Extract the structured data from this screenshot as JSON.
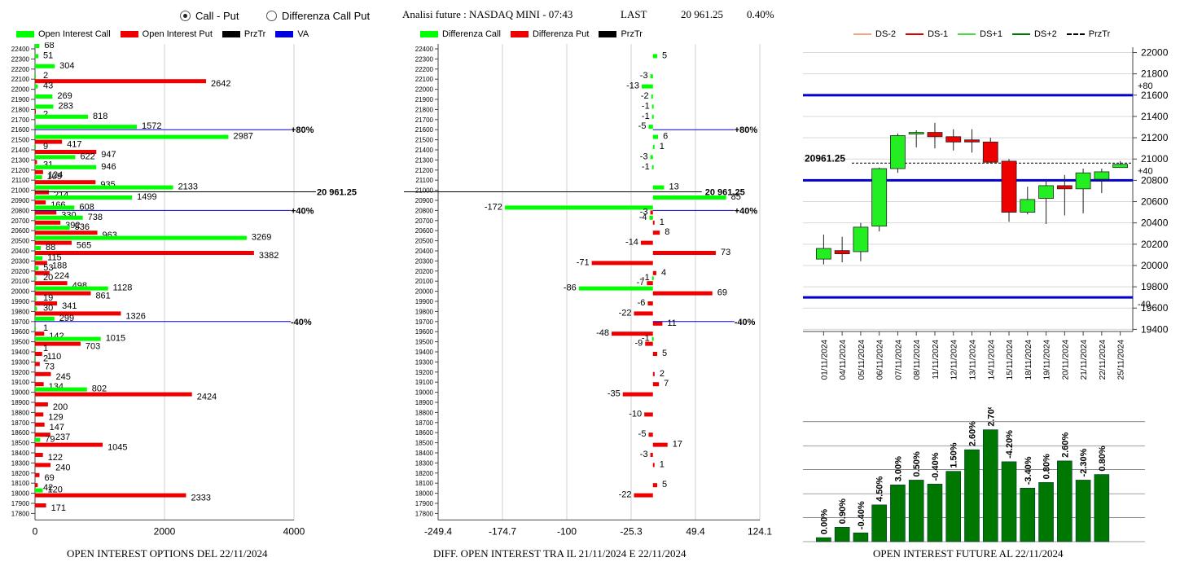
{
  "header": {
    "radio_options": [
      "Call - Put",
      "Differenza Call Put"
    ],
    "selected": "Call - Put",
    "title": "Analisi future : NASDAQ MINI - 07:43",
    "last_label": "LAST",
    "last_value": "20 961.25",
    "last_change": "0.40%"
  },
  "legends": {
    "oi": [
      {
        "label": "Open Interest Call",
        "color": "#00ff00",
        "kind": "bar"
      },
      {
        "label": "Open Interest Put",
        "color": "#ee0000",
        "kind": "bar"
      },
      {
        "label": "PrzTr",
        "color": "#000000",
        "kind": "bar"
      },
      {
        "label": "VA",
        "color": "#0000dd",
        "kind": "bar"
      }
    ],
    "diff": [
      {
        "label": "Differenza Call",
        "color": "#00ff00",
        "kind": "bar"
      },
      {
        "label": "Differenza Put",
        "color": "#ee0000",
        "kind": "bar"
      },
      {
        "label": "PrzTr",
        "color": "#000000",
        "kind": "bar"
      }
    ],
    "candle": [
      {
        "label": "DS-2",
        "color": "#f4a582",
        "kind": "line"
      },
      {
        "label": "DS-1",
        "color": "#dd0000",
        "kind": "line"
      },
      {
        "label": "DS+1",
        "color": "#44dd44",
        "kind": "line"
      },
      {
        "label": "DS+2",
        "color": "#007700",
        "kind": "line"
      },
      {
        "label": "PrzTr",
        "color": "#000000",
        "kind": "dash"
      }
    ]
  },
  "footers": {
    "oi": "OPEN INTEREST OPTIONS DEL 22/11/2024",
    "diff": "DIFF. OPEN INTEREST TRA IL 21/11/2024 E 22/11/2024",
    "future": "OPEN INTEREST FUTURE AL 22/11/2024"
  },
  "chart_data": [
    {
      "type": "bar",
      "orientation": "horizontal",
      "strikes": [
        22400,
        22300,
        22200,
        22100,
        22000,
        21900,
        21800,
        21700,
        21600,
        21500,
        21400,
        21300,
        21200,
        21100,
        21000,
        20900,
        20800,
        20700,
        20600,
        20500,
        20400,
        20300,
        20200,
        20100,
        20000,
        19900,
        19800,
        19700,
        19600,
        19500,
        19400,
        19300,
        19200,
        19100,
        19000,
        18900,
        18800,
        18700,
        18600,
        18500,
        18400,
        18300,
        18200,
        18100,
        18000,
        17900,
        17800
      ],
      "series": [
        {
          "name": "Open Interest Call",
          "color": "#00ff00",
          "values": [
            68,
            51,
            304,
            2,
            43,
            269,
            283,
            818,
            1572,
            2987,
            9,
            622,
            946,
            109,
            2133,
            1499,
            608,
            738,
            536,
            3269,
            88,
            115,
            53,
            20,
            1128,
            19,
            30,
            299,
            1,
            1015,
            1,
            2,
            null,
            null,
            802,
            null,
            null,
            null,
            null,
            79,
            null,
            null,
            null,
            null,
            120,
            null,
            null
          ]
        },
        {
          "name": "Open Interest Put",
          "color": "#ee0000",
          "values": [
            null,
            null,
            null,
            2642,
            null,
            null,
            2,
            null,
            null,
            417,
            947,
            31,
            124,
            935,
            214,
            166,
            330,
            392,
            963,
            565,
            3382,
            188,
            224,
            498,
            861,
            341,
            1326,
            null,
            142,
            703,
            110,
            73,
            245,
            134,
            2424,
            200,
            129,
            147,
            237,
            1045,
            122,
            240,
            69,
            42,
            2333,
            171,
            null
          ]
        }
      ],
      "xticks": [
        0,
        2000,
        4000
      ],
      "xlim": [
        0,
        4000
      ],
      "hlines": [
        {
          "strike": 21600,
          "label": "+80%",
          "color": "#0000cc",
          "type": "VA"
        },
        {
          "strike": 20985,
          "label": "20 961.25",
          "color": "#000000",
          "type": "PrzTr"
        },
        {
          "strike": 20800,
          "label": "+40%",
          "color": "#0000cc",
          "type": "VA"
        },
        {
          "strike": 19700,
          "label": "-40%",
          "color": "#0000cc",
          "type": "VA"
        }
      ]
    },
    {
      "type": "bar",
      "orientation": "horizontal",
      "strikes": [
        22400,
        22300,
        22200,
        22100,
        22000,
        21900,
        21800,
        21700,
        21600,
        21500,
        21400,
        21300,
        21200,
        21100,
        21000,
        20900,
        20800,
        20700,
        20600,
        20500,
        20400,
        20300,
        20200,
        20100,
        20000,
        19900,
        19800,
        19700,
        19600,
        19500,
        19400,
        19300,
        19200,
        19100,
        19000,
        18900,
        18800,
        18700,
        18600,
        18500,
        18400,
        18300,
        18200,
        18100,
        18000,
        17900,
        17800
      ],
      "series": [
        {
          "name": "Differenza Call",
          "color": "#00ff00",
          "values": [
            null,
            5,
            null,
            -3,
            -13,
            -2,
            -1,
            -1,
            -5,
            6,
            1,
            -3,
            -1,
            null,
            13,
            85,
            -172,
            -4,
            null,
            null,
            null,
            null,
            null,
            -1,
            -86,
            null,
            null,
            null,
            null,
            -1,
            null,
            null,
            null,
            null,
            null,
            null,
            null,
            null,
            null,
            null,
            null,
            null,
            null,
            null,
            null,
            null,
            null
          ]
        },
        {
          "name": "Differenza Put",
          "color": "#ee0000",
          "values": [
            null,
            null,
            null,
            null,
            null,
            null,
            null,
            null,
            null,
            null,
            null,
            null,
            null,
            null,
            null,
            null,
            -3,
            1,
            8,
            -14,
            73,
            -71,
            4,
            -7,
            69,
            -6,
            -22,
            11,
            -48,
            -9,
            5,
            null,
            2,
            7,
            -35,
            null,
            -10,
            null,
            -5,
            17,
            -3,
            1,
            null,
            5,
            -22,
            null,
            null
          ]
        }
      ],
      "xticks": [
        -249.4,
        -174.7,
        -100,
        -25.3,
        49.4,
        124.1
      ],
      "xlim": [
        -249.4,
        124.1
      ],
      "zero_x": 0,
      "hlines": [
        {
          "strike": 21600,
          "label": "+80%",
          "color": "#0000cc",
          "type": "VA"
        },
        {
          "strike": 20985,
          "label": "20 961.25",
          "color": "#000000",
          "type": "PrzTr"
        },
        {
          "strike": 20800,
          "label": "+40%",
          "color": "#0000cc",
          "type": "VA"
        },
        {
          "strike": 19700,
          "label": "-40%",
          "color": "#0000cc",
          "type": "VA"
        }
      ]
    },
    {
      "type": "candlestick",
      "dates": [
        "01/11/2024",
        "04/11/2024",
        "05/11/2024",
        "06/11/2024",
        "07/11/2024",
        "08/11/2024",
        "11/11/2024",
        "12/11/2024",
        "13/11/2024",
        "14/11/2024",
        "15/11/2024",
        "18/11/2024",
        "19/11/2024",
        "20/11/2024",
        "21/11/2024",
        "22/11/2024",
        "25/11/2024"
      ],
      "ohlc": [
        [
          20060,
          20290,
          20010,
          20160
        ],
        [
          20140,
          20270,
          20030,
          20110
        ],
        [
          20130,
          20400,
          20040,
          20360
        ],
        [
          20370,
          20920,
          20320,
          20910
        ],
        [
          20910,
          21240,
          20870,
          21220
        ],
        [
          21240,
          21270,
          21110,
          21250
        ],
        [
          21250,
          21340,
          21100,
          21210
        ],
        [
          21210,
          21280,
          21080,
          21160
        ],
        [
          21180,
          21280,
          21060,
          21160
        ],
        [
          21160,
          21200,
          20960,
          20970
        ],
        [
          20980,
          21000,
          20410,
          20500
        ],
        [
          20500,
          20740,
          20480,
          20620
        ],
        [
          20630,
          20800,
          20390,
          20750
        ],
        [
          20750,
          20850,
          20470,
          20720
        ],
        [
          20720,
          20910,
          20490,
          20870
        ],
        [
          20810,
          20910,
          20680,
          20880
        ],
        [
          20920,
          20980,
          20920,
          20950
        ]
      ],
      "yticks": [
        19400,
        19600,
        19800,
        20000,
        20200,
        20400,
        20600,
        20800,
        21000,
        21200,
        21400,
        21600,
        21800,
        22000
      ],
      "ylim": [
        19380,
        22050
      ],
      "hlines": [
        {
          "y": 21600,
          "label": "+80",
          "color": "#0000cc"
        },
        {
          "y": 20800,
          "label": "+40",
          "color": "#0000cc"
        },
        {
          "y": 19700,
          "label": "-40",
          "color": "#0000cc"
        }
      ],
      "price_line": {
        "y": 20961.25,
        "label": "20961.25"
      }
    },
    {
      "type": "bar",
      "categories": [
        "01/11/2024",
        "04/11/2024",
        "05/11/2024",
        "06/11/2024",
        "07/11/2024",
        "08/11/2024",
        "11/11/2024",
        "12/11/2024",
        "13/11/2024",
        "14/11/2024",
        "15/11/2024",
        "18/11/2024",
        "19/11/2024",
        "20/11/2024",
        "21/11/2024",
        "22/11/2024",
        "25/11/2024"
      ],
      "values": [
        5,
        18,
        11,
        46,
        71,
        77,
        72,
        88,
        115,
        140,
        100,
        67,
        74,
        101,
        77,
        84,
        null
      ],
      "labels": [
        "0.00%",
        "0.90%",
        "-0.40%",
        "4.50%",
        "3.00%",
        "0.50%",
        "-0.40%",
        "1.50%",
        "2.60%",
        "2.70%",
        "-4.20%",
        "-3.40%",
        "0.80%",
        "2.60%",
        "-2.30%",
        "0.80%",
        ""
      ],
      "ylim": [
        0,
        160
      ],
      "color": "#007700"
    }
  ]
}
